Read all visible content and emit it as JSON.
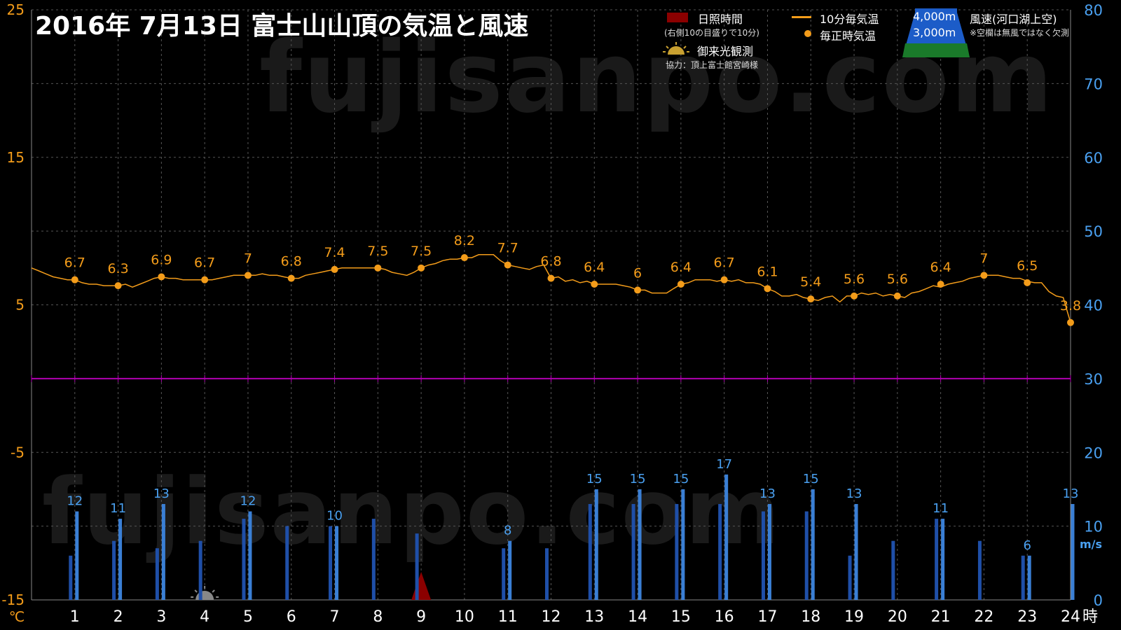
{
  "watermark": "fujisanpo.com",
  "title": "2016年  7月13日   富士山山頂の気温と風速",
  "legend": {
    "sunshine": "日照時間",
    "sunshine_note": "(右側10の目盛りで10分)",
    "sunrise": "御来光観測",
    "credit": "協力：頂上富士館宮崎様",
    "temp_10min": "10分毎気温",
    "temp_hourly": "毎正時気温",
    "alt_4000": "4,000m",
    "alt_3000": "3,000m",
    "wind": "風速(河口湖上空)",
    "wind_note": "※空欄は無風ではなく欠測"
  },
  "colors": {
    "temperature": "#f39c1a",
    "wind_4000": "#3a7fd5",
    "wind_3000": "#1f4fa8",
    "sunshine": "#8b0000",
    "zero_line": "#b000b0",
    "left_axis": "#f39c1a",
    "right_axis": "#4aa0f0"
  },
  "chart_data": {
    "type": "line+bar",
    "x_label_unit": "時",
    "hours": [
      1,
      2,
      3,
      4,
      5,
      6,
      7,
      8,
      9,
      10,
      11,
      12,
      13,
      14,
      15,
      16,
      17,
      18,
      19,
      20,
      21,
      22,
      23,
      24
    ],
    "left_axis": {
      "unit": "℃",
      "ylim": [
        -15,
        25
      ],
      "ticks": [
        -15,
        -5,
        5,
        15,
        25
      ]
    },
    "right_axis": {
      "unit": "m/s",
      "ylim": [
        0,
        80
      ],
      "ticks": [
        0,
        10,
        20,
        30,
        40,
        50,
        60,
        70,
        80
      ]
    },
    "temperature_hourly": [
      6.7,
      6.3,
      6.9,
      6.7,
      7,
      6.8,
      7.4,
      7.5,
      7.5,
      8.2,
      7.7,
      6.8,
      6.4,
      6,
      6.4,
      6.7,
      6.1,
      5.4,
      5.6,
      5.6,
      6.4,
      7,
      6.5,
      3.8
    ],
    "temperature_10min_x": [
      0,
      0.17,
      0.33,
      0.5,
      0.67,
      0.83,
      1,
      1.17,
      1.33,
      1.5,
      1.67,
      1.83,
      2,
      2.17,
      2.33,
      2.5,
      2.67,
      2.83,
      3,
      3.17,
      3.33,
      3.5,
      3.67,
      3.83,
      4,
      4.17,
      4.33,
      4.5,
      4.67,
      4.83,
      5,
      5.17,
      5.33,
      5.5,
      5.67,
      5.83,
      6,
      6.17,
      6.33,
      6.5,
      6.67,
      6.83,
      7,
      7.17,
      7.33,
      7.5,
      7.67,
      7.83,
      8,
      8.17,
      8.33,
      8.5,
      8.67,
      8.83,
      9,
      9.17,
      9.33,
      9.5,
      9.67,
      9.83,
      10,
      10.17,
      10.33,
      10.5,
      10.67,
      10.83,
      11,
      11.17,
      11.33,
      11.5,
      11.67,
      11.83,
      12,
      12.17,
      12.33,
      12.5,
      12.67,
      12.83,
      13,
      13.17,
      13.33,
      13.5,
      13.67,
      13.83,
      14,
      14.17,
      14.33,
      14.5,
      14.67,
      14.83,
      15,
      15.17,
      15.33,
      15.5,
      15.67,
      15.83,
      16,
      16.17,
      16.33,
      16.5,
      16.67,
      16.83,
      17,
      17.17,
      17.33,
      17.5,
      17.67,
      17.83,
      18,
      18.17,
      18.33,
      18.5,
      18.67,
      18.83,
      19,
      19.17,
      19.33,
      19.5,
      19.67,
      19.83,
      20,
      20.17,
      20.33,
      20.5,
      20.67,
      20.83,
      21,
      21.17,
      21.33,
      21.5,
      21.67,
      21.83,
      22,
      22.17,
      22.33,
      22.5,
      22.67,
      22.83,
      23,
      23.17,
      23.33,
      23.5,
      23.67,
      23.83,
      24
    ],
    "temperature_10min": [
      7.5,
      7.3,
      7.1,
      6.9,
      6.8,
      6.7,
      6.7,
      6.5,
      6.4,
      6.4,
      6.3,
      6.3,
      6.3,
      6.4,
      6.2,
      6.4,
      6.6,
      6.8,
      6.9,
      6.8,
      6.8,
      6.7,
      6.7,
      6.7,
      6.7,
      6.7,
      6.8,
      6.9,
      7.0,
      7.0,
      7.0,
      7.0,
      7.1,
      7.0,
      7.0,
      6.9,
      6.8,
      6.8,
      7.0,
      7.1,
      7.2,
      7.3,
      7.4,
      7.5,
      7.5,
      7.5,
      7.5,
      7.5,
      7.5,
      7.4,
      7.2,
      7.1,
      7.0,
      7.2,
      7.5,
      7.7,
      7.8,
      8.0,
      8.1,
      8.1,
      8.2,
      8.2,
      8.4,
      8.4,
      8.4,
      8.0,
      7.7,
      7.6,
      7.5,
      7.4,
      7.6,
      7.7,
      6.8,
      6.9,
      6.6,
      6.7,
      6.5,
      6.6,
      6.4,
      6.4,
      6.4,
      6.4,
      6.3,
      6.2,
      6.0,
      6.0,
      5.8,
      5.8,
      5.8,
      6.1,
      6.4,
      6.5,
      6.7,
      6.7,
      6.7,
      6.6,
      6.7,
      6.6,
      6.7,
      6.5,
      6.5,
      6.4,
      6.1,
      5.9,
      5.6,
      5.6,
      5.7,
      5.5,
      5.4,
      5.3,
      5.5,
      5.6,
      5.2,
      5.6,
      5.6,
      5.8,
      5.7,
      5.8,
      5.6,
      5.7,
      5.6,
      5.5,
      5.8,
      5.9,
      6.1,
      6.3,
      6.2,
      6.4,
      6.5,
      6.6,
      6.8,
      6.9,
      7.0,
      7.0,
      7.0,
      6.9,
      6.8,
      6.8,
      6.6,
      6.5,
      6.5,
      5.9,
      5.6,
      5.5,
      3.8
    ],
    "wind_4000m": [
      12,
      11,
      13,
      null,
      12,
      null,
      10,
      null,
      null,
      null,
      8,
      null,
      15,
      15,
      15,
      17,
      13,
      15,
      13,
      null,
      11,
      null,
      6,
      13
    ],
    "wind_3000m": [
      6,
      8,
      7,
      8,
      11,
      10,
      10,
      11,
      9,
      null,
      7,
      7,
      13,
      13,
      13,
      13,
      12,
      12,
      6,
      8,
      11,
      8,
      6,
      null
    ],
    "wind_4000m_labels": [
      "12",
      "11",
      "13",
      "",
      "12",
      "",
      "10",
      "",
      "",
      "",
      "8",
      "",
      "15",
      "15",
      "15",
      "17",
      "13",
      "15",
      "13",
      "",
      "11",
      "",
      "6",
      "13"
    ],
    "sunrise_hour": 4,
    "sunshine_markers_x": [
      9
    ]
  }
}
